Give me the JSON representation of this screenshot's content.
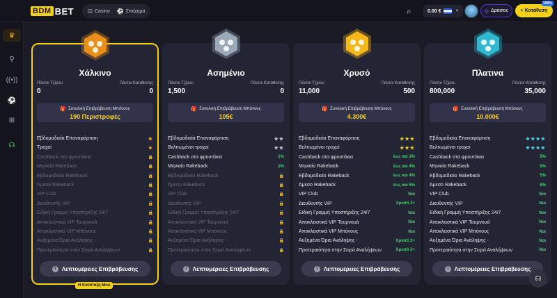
{
  "brand": {
    "box": "BDM",
    "suffix": "BET"
  },
  "nav": [
    {
      "label": "Casino",
      "icon": "dice-icon"
    },
    {
      "label": "Στοίχημα",
      "icon": "soccer-ball-icon"
    }
  ],
  "header": {
    "balance": "0.00 €",
    "login": "Δράσεις",
    "signup": "Κατάθεση",
    "badge": "100%"
  },
  "tiers": [
    {
      "name": "Χάλκινο",
      "medal_color": "#e8901a",
      "points_label": "Πόντοι Τζίρου",
      "points": "0",
      "deposit_label": "Πόντοι Κατάθεσης",
      "deposit": "0",
      "bonus_label": "Συνολική Επιβράβευση Μπόνους",
      "bonus": "190 Περιστροφές",
      "features": [
        {
          "label": "Εβδομαδιαία Επαναφόρτιση",
          "value": "★",
          "type": "star",
          "on": true
        },
        {
          "label": "Τροχοί",
          "value": "★",
          "type": "star",
          "on": true
        },
        {
          "label": "Cashback στα φρουτάκια",
          "value": "🔒",
          "type": "lock",
          "on": false
        },
        {
          "label": "Μηνιαίο Rakeback",
          "value": "🔒",
          "type": "lock",
          "on": false
        },
        {
          "label": "Εβδομαδιαίο Rakeback",
          "value": "🔒",
          "type": "lock",
          "on": false
        },
        {
          "label": "Άμεσο Rakeback",
          "value": "🔒",
          "type": "lock",
          "on": false
        },
        {
          "label": "VIP Club",
          "value": "🔒",
          "type": "lock",
          "on": false
        },
        {
          "label": "Διευθυντής VIP",
          "value": "🔒",
          "type": "lock",
          "on": false
        },
        {
          "label": "Ειδική Γραμμή Υποστήριξης 24/7",
          "value": "🔒",
          "type": "lock",
          "on": false
        },
        {
          "label": "Αποκλειστικά VIP Τουρνουά",
          "value": "🔒",
          "type": "lock",
          "on": false
        },
        {
          "label": "Αποκλειστικά VIP Μπόνους",
          "value": "🔒",
          "type": "lock",
          "on": false
        },
        {
          "label": "Αυξημένα Όρια Ανάληψης -",
          "value": "🔒",
          "type": "lock",
          "on": false
        },
        {
          "label": "Προτεραιότητα στην Σειρά Αναλήψεων",
          "value": "🔒",
          "type": "lock",
          "on": false
        }
      ],
      "details": "Λεπτομέρειες Επιβράβευσης",
      "my_category": "Η Κατάταξή Μου"
    },
    {
      "name": "Ασημένιο",
      "medal_color": "#9aa8b8",
      "points_label": "Πόντοι Τζίρου",
      "points": "1,500",
      "deposit_label": "Πόντοι Κατάθεσης",
      "deposit": "0",
      "bonus_label": "Συνολική Επιβράβευση Μπόνους",
      "bonus": "105€",
      "features": [
        {
          "label": "Εβδομαδιαία Επαναφόρτιση",
          "value": "★★",
          "type": "star",
          "on": true
        },
        {
          "label": "Βελτιωμένοι τροχοί",
          "value": "★★",
          "type": "star",
          "on": true
        },
        {
          "label": "Cashback στα φρουτάκια",
          "value": "1%",
          "type": "text",
          "on": true
        },
        {
          "label": "Μηνιαίο Rakeback",
          "value": "2%",
          "type": "text",
          "on": true
        },
        {
          "label": "Εβδομαδιαίο Rakeback",
          "value": "🔒",
          "type": "lock",
          "on": false
        },
        {
          "label": "Άμεσο Rakeback",
          "value": "🔒",
          "type": "lock",
          "on": false
        },
        {
          "label": "VIP Club",
          "value": "🔒",
          "type": "lock",
          "on": false
        },
        {
          "label": "Διευθυντής VIP",
          "value": "🔒",
          "type": "lock",
          "on": false
        },
        {
          "label": "Ειδική Γραμμή Υποστήριξης 24/7",
          "value": "🔒",
          "type": "lock",
          "on": false
        },
        {
          "label": "Αποκλειστικά VIP Τουρνουά",
          "value": "🔒",
          "type": "lock",
          "on": false
        },
        {
          "label": "Αποκλειστικά VIP Μπόνους",
          "value": "🔒",
          "type": "lock",
          "on": false
        },
        {
          "label": "Αυξημένα Όρια Ανάληψης -",
          "value": "🔒",
          "type": "lock",
          "on": false
        },
        {
          "label": "Προτεραιότητα στην Σειρά Αναλήψεων",
          "value": "🔒",
          "type": "lock",
          "on": false
        }
      ],
      "details": "Λεπτομέρειες Επιβράβευσης"
    },
    {
      "name": "Χρυσό",
      "medal_color": "#f5b71a",
      "points_label": "Πόντοι Τζίρου",
      "points": "11,000",
      "deposit_label": "Πόντοι Κατάθεσης",
      "deposit": "500",
      "bonus_label": "Συνολική Επιβράβευση Μπόνους",
      "bonus": "4.300€",
      "features": [
        {
          "label": "Εβδομαδιαία Επαναφόρτιση",
          "value": "★★★",
          "type": "star",
          "on": true
        },
        {
          "label": "Βελτιωμένοι τροχοί",
          "value": "★★★",
          "type": "star",
          "on": true
        },
        {
          "label": "Cashback στα φρουτάκια",
          "value": "έως και 3%",
          "type": "text",
          "on": true
        },
        {
          "label": "Μηνιαίο Rakeback",
          "value": "έως και 4%",
          "type": "text",
          "on": true
        },
        {
          "label": "Εβδομαδιαίο Rakeback",
          "value": "έως και 4%",
          "type": "text",
          "on": true
        },
        {
          "label": "Άμεσο Rakeback",
          "value": "έως και 5%",
          "type": "text",
          "on": true
        },
        {
          "label": "VIP Club",
          "value": "Ναι",
          "type": "text",
          "on": true
        },
        {
          "label": "Διευθυντής VIP",
          "value": "Χρυσό 2+",
          "type": "text",
          "on": true
        },
        {
          "label": "Ειδική Γραμμή Υποστήριξης 24/7",
          "value": "Ναι",
          "type": "text",
          "on": true
        },
        {
          "label": "Αποκλειστικά VIP Τουρνουά",
          "value": "Ναι",
          "type": "text",
          "on": true
        },
        {
          "label": "Αποκλειστικά VIP Μπόνους",
          "value": "Ναι",
          "type": "text",
          "on": true
        },
        {
          "label": "Αυξημένα Όρια Ανάληψης -",
          "value": "Χρυσό 2+",
          "type": "text",
          "on": true
        },
        {
          "label": "Προτεραιότητα στην Σειρά Αναλήψεων",
          "value": "Χρυσό 2+",
          "type": "text",
          "on": true
        }
      ],
      "details": "Λεπτομέρειες Επιβράβευσης"
    },
    {
      "name": "Πλατινα",
      "medal_color": "#2fb8d0",
      "points_label": "Πόντοι Τζίρου",
      "points": "800,000",
      "deposit_label": "Πόντοι Κατάθεσης",
      "deposit": "35,000",
      "bonus_label": "Συνολική Επιβράβευση Μπόνους",
      "bonus": "10.000€",
      "features": [
        {
          "label": "Εβδομαδιαία Επαναφόρτιση",
          "value": "★★★★",
          "type": "star",
          "on": true
        },
        {
          "label": "Βελτιωμένοι τροχοί",
          "value": "★★★★",
          "type": "star",
          "on": true
        },
        {
          "label": "Cashback στα φρουτάκια",
          "value": "5%",
          "type": "text",
          "on": true
        },
        {
          "label": "Μηνιαίο Rakeback",
          "value": "5%",
          "type": "text",
          "on": true
        },
        {
          "label": "Εβδομαδιαίο Rakeback",
          "value": "5%",
          "type": "text",
          "on": true
        },
        {
          "label": "Άμεσο Rakeback",
          "value": "8%",
          "type": "text",
          "on": true
        },
        {
          "label": "VIP Club",
          "value": "Ναι",
          "type": "text",
          "on": true
        },
        {
          "label": "Διευθυντής VIP",
          "value": "Ναι",
          "type": "text",
          "on": true
        },
        {
          "label": "Ειδική Γραμμή Υποστήριξης 24/7",
          "value": "Ναι",
          "type": "text",
          "on": true
        },
        {
          "label": "Αποκλειστικά VIP Τουρνουά",
          "value": "Ναι",
          "type": "text",
          "on": true
        },
        {
          "label": "Αποκλειστικά VIP Μπόνους",
          "value": "Ναι",
          "type": "text",
          "on": true
        },
        {
          "label": "Αυξημένα Όρια Ανάληψης -",
          "value": "Ναι",
          "type": "text",
          "on": true
        },
        {
          "label": "Προτεραιότητα στην Σειρά Αναλήψεων",
          "value": "Ναι",
          "type": "text",
          "on": true
        }
      ],
      "details": "Λεπτομέρειες Επιβράβευσης"
    }
  ],
  "sidebar": [
    "trophy-icon",
    "bike-icon",
    "live-icon",
    "soccer-icon",
    "gamepad-icon",
    "headset-icon"
  ]
}
